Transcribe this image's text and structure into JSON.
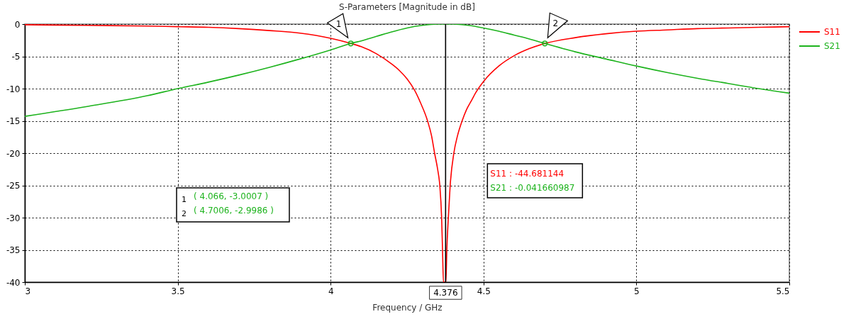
{
  "chart_data": {
    "type": "line",
    "title": "S-Parameters [Magnitude in dB]",
    "xlabel": "Frequency / GHz",
    "xlim": [
      3,
      5.5
    ],
    "ylim": [
      -40,
      0
    ],
    "xticks": [
      3,
      3.5,
      4,
      4.5,
      5,
      5.5
    ],
    "yticks": [
      0,
      -5,
      -10,
      -15,
      -20,
      -25,
      -30,
      -35,
      -40
    ],
    "grid": true,
    "legend": "top right",
    "line_style": "solid",
    "series": [
      {
        "name": "S11",
        "color": "#ff0000",
        "x": [
          3.0,
          3.2,
          3.4,
          3.5,
          3.6,
          3.7,
          3.8,
          3.9,
          4.0,
          4.066,
          4.1,
          4.15,
          4.2,
          4.225,
          4.25,
          4.275,
          4.294,
          4.317,
          4.33,
          4.34,
          4.35,
          4.357,
          4.363,
          4.366,
          4.369,
          4.377,
          4.38,
          4.385,
          4.391,
          4.403,
          4.415,
          4.43,
          4.445,
          4.46,
          4.475,
          4.5,
          4.55,
          4.6,
          4.65,
          4.7006,
          4.8,
          4.9,
          5.0,
          5.1,
          5.2,
          5.3,
          5.4,
          5.5
        ],
        "values": [
          -0.1,
          -0.2,
          -0.3,
          -0.4,
          -0.5,
          -0.7,
          -1.0,
          -1.4,
          -2.2,
          -3.0,
          -3.5,
          -4.6,
          -6.2,
          -7.2,
          -8.5,
          -10.3,
          -12.2,
          -15,
          -17.3,
          -20,
          -22.5,
          -25,
          -30,
          -35,
          -40,
          -40,
          -35,
          -30,
          -25,
          -20,
          -17.3,
          -15,
          -13.2,
          -11.9,
          -10.6,
          -8.9,
          -6.5,
          -4.9,
          -3.8,
          -3.0,
          -2.1,
          -1.5,
          -1.1,
          -0.9,
          -0.7,
          -0.6,
          -0.5,
          -0.4
        ]
      },
      {
        "name": "S21",
        "color": "#1db31d",
        "x": [
          3.0,
          3.2,
          3.4,
          3.5,
          3.6,
          3.7,
          3.8,
          3.9,
          4.0,
          4.066,
          4.1,
          4.15,
          4.2,
          4.25,
          4.3,
          4.35,
          4.376,
          4.4,
          4.45,
          4.5,
          4.55,
          4.6,
          4.65,
          4.7006,
          4.8,
          4.9,
          5.0,
          5.1,
          5.2,
          5.3,
          5.4,
          5.5
        ],
        "values": [
          -14.3,
          -12.8,
          -11.1,
          -10.0,
          -9.0,
          -7.9,
          -6.7,
          -5.4,
          -4.0,
          -3.0,
          -2.6,
          -1.9,
          -1.2,
          -0.6,
          -0.2,
          0.0,
          0.0,
          0.0,
          -0.2,
          -0.6,
          -1.1,
          -1.7,
          -2.3,
          -3.0,
          -4.3,
          -5.4,
          -6.5,
          -7.5,
          -8.4,
          -9.2,
          -10.0,
          -10.7
        ]
      }
    ],
    "ref_lines": [
      {
        "axis": "x",
        "value": 4.376,
        "label": "4.376",
        "color": "#000000"
      }
    ],
    "annotations": [
      {
        "text": "1",
        "x": 4.066,
        "y": -3.0
      },
      {
        "text": "2",
        "x": 4.7006,
        "y": -3.0
      },
      "( 4.066, -3.0007 )",
      "( 4.7006, -2.9986 )",
      "S11 : -44.681144",
      "S21 : -0.041660987"
    ]
  }
}
